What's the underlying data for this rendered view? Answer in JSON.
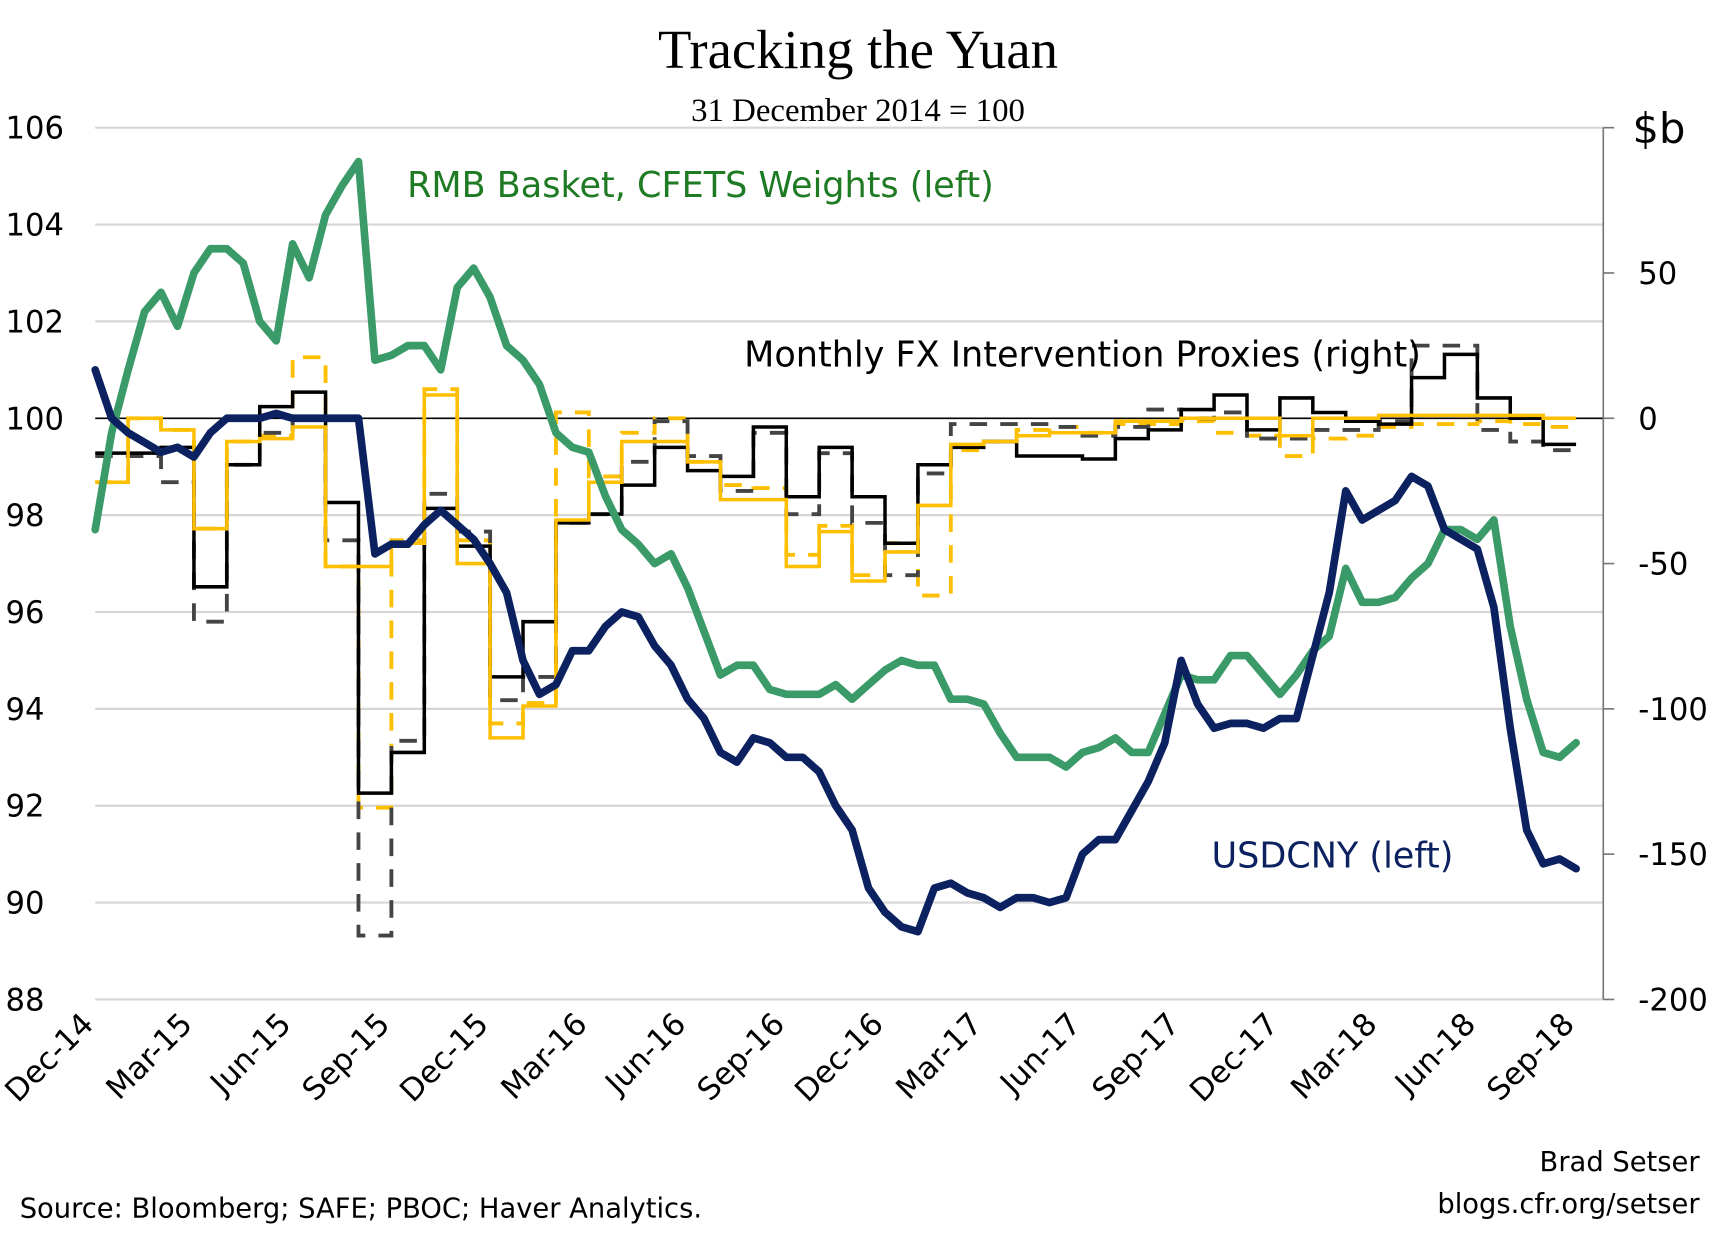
{
  "chart_data": {
    "type": "line",
    "title": "Tracking the Yuan",
    "subtitle": "31 December 2014 = 100",
    "grid": true,
    "x_tick_labels": [
      "Dec-14",
      "Mar-15",
      "Jun-15",
      "Sep-15",
      "Dec-15",
      "Mar-16",
      "Jun-16",
      "Sep-16",
      "Dec-16",
      "Mar-17",
      "Jun-17",
      "Sep-17",
      "Dec-17",
      "Mar-18",
      "Jun-18",
      "Sep-18"
    ],
    "x_range": [
      "2014-12",
      "2018-09"
    ],
    "y_left": {
      "ticks": [
        106,
        104,
        102,
        100,
        98,
        96,
        94,
        92,
        90,
        88
      ],
      "range": [
        88,
        106
      ]
    },
    "y_right": {
      "label": "$b",
      "ticks": [
        50,
        0,
        -50,
        -100,
        -150,
        -200
      ],
      "range": [
        -200,
        100
      ]
    },
    "labels": {
      "cfets": "RMB Basket, CFETS Weights (left)",
      "proxies": "Monthly FX Intervention Proxies (right)",
      "usdcny": "USDCNY (left)"
    },
    "daily": {
      "dates": [
        "2014-12-01",
        "2014-12-16",
        "2015-01-01",
        "2015-01-16",
        "2015-02-01",
        "2015-02-16",
        "2015-03-01",
        "2015-03-16",
        "2015-04-01",
        "2015-04-16",
        "2015-05-01",
        "2015-05-16",
        "2015-06-01",
        "2015-06-16",
        "2015-07-01",
        "2015-07-16",
        "2015-08-01",
        "2015-08-16",
        "2015-09-01",
        "2015-09-16",
        "2015-10-01",
        "2015-10-16",
        "2015-11-01",
        "2015-11-16",
        "2015-12-01",
        "2015-12-16",
        "2016-01-01",
        "2016-01-16",
        "2016-02-01",
        "2016-02-16",
        "2016-03-01",
        "2016-03-16",
        "2016-04-01",
        "2016-04-16",
        "2016-05-01",
        "2016-05-16",
        "2016-06-01",
        "2016-06-16",
        "2016-07-01",
        "2016-07-16",
        "2016-08-01",
        "2016-08-16",
        "2016-09-01",
        "2016-09-16",
        "2016-10-01",
        "2016-10-16",
        "2016-11-01",
        "2016-11-16",
        "2016-12-01",
        "2016-12-16",
        "2017-01-01",
        "2017-01-16",
        "2017-02-01",
        "2017-02-16",
        "2017-03-01",
        "2017-03-16",
        "2017-04-01",
        "2017-04-16",
        "2017-05-01",
        "2017-05-16",
        "2017-06-01",
        "2017-06-16",
        "2017-07-01",
        "2017-07-16",
        "2017-08-01",
        "2017-08-16",
        "2017-09-01",
        "2017-09-16",
        "2017-10-01",
        "2017-10-16",
        "2017-11-01",
        "2017-11-16",
        "2017-12-01",
        "2017-12-16",
        "2018-01-01",
        "2018-01-16",
        "2018-02-01",
        "2018-02-16",
        "2018-03-01",
        "2018-03-16",
        "2018-04-01",
        "2018-04-16",
        "2018-05-01",
        "2018-05-16",
        "2018-06-01",
        "2018-06-16",
        "2018-07-01",
        "2018-07-16",
        "2018-08-01",
        "2018-08-16",
        "2018-09-01"
      ],
      "series": [
        {
          "name": "RMB Basket, CFETS Weights (left)",
          "axis": "left",
          "color": "#3a9a68",
          "values": [
            97.7,
            99.7,
            101.0,
            102.2,
            102.6,
            101.9,
            103.0,
            103.5,
            103.5,
            103.2,
            102.0,
            101.6,
            103.6,
            102.9,
            104.2,
            104.8,
            105.3,
            101.2,
            101.3,
            101.5,
            101.5,
            101.0,
            102.7,
            103.1,
            102.5,
            101.5,
            101.2,
            100.7,
            99.7,
            99.4,
            99.3,
            98.4,
            97.7,
            97.4,
            97.0,
            97.2,
            96.5,
            95.6,
            94.7,
            94.9,
            94.9,
            94.4,
            94.3,
            94.3,
            94.3,
            94.5,
            94.2,
            94.5,
            94.8,
            95.0,
            94.9,
            94.9,
            94.2,
            94.2,
            94.1,
            93.5,
            93.0,
            93.0,
            93.0,
            92.8,
            93.1,
            93.2,
            93.4,
            93.1,
            93.1,
            93.9,
            94.7,
            94.6,
            94.6,
            95.1,
            95.1,
            94.7,
            94.3,
            94.7,
            95.2,
            95.5,
            96.9,
            96.2,
            96.2,
            96.3,
            96.7,
            97.0,
            97.7,
            97.7,
            97.5,
            97.9,
            95.7,
            94.2,
            93.1,
            93.0,
            93.3
          ]
        },
        {
          "name": "USDCNY (left)",
          "axis": "left",
          "color": "#0b2160",
          "values": [
            101.0,
            100.0,
            99.7,
            99.5,
            99.3,
            99.4,
            99.2,
            99.7,
            100.0,
            100.0,
            100.0,
            100.1,
            100.0,
            100.0,
            100.0,
            100.0,
            100.0,
            97.2,
            97.4,
            97.4,
            97.8,
            98.1,
            97.8,
            97.5,
            97.0,
            96.4,
            95.0,
            94.3,
            94.5,
            95.2,
            95.2,
            95.7,
            96.0,
            95.9,
            95.3,
            94.9,
            94.2,
            93.8,
            93.1,
            92.9,
            93.4,
            93.3,
            93.0,
            93.0,
            92.7,
            92.0,
            91.5,
            90.3,
            89.8,
            89.5,
            89.4,
            90.3,
            90.4,
            90.2,
            90.1,
            89.9,
            90.1,
            90.1,
            90.0,
            90.1,
            91.0,
            91.3,
            91.3,
            91.9,
            92.5,
            93.3,
            95.0,
            94.1,
            93.6,
            93.7,
            93.7,
            93.6,
            93.8,
            93.8,
            95.1,
            96.4,
            98.5,
            97.9,
            98.1,
            98.3,
            98.8,
            98.6,
            97.7,
            97.5,
            97.3,
            96.1,
            93.6,
            91.5,
            90.8,
            90.9,
            90.7
          ]
        }
      ]
    },
    "monthly": {
      "months": [
        "2014-12",
        "2015-01",
        "2015-02",
        "2015-03",
        "2015-04",
        "2015-05",
        "2015-06",
        "2015-07",
        "2015-08",
        "2015-09",
        "2015-10",
        "2015-11",
        "2015-12",
        "2016-01",
        "2016-02",
        "2016-03",
        "2016-04",
        "2016-05",
        "2016-06",
        "2016-07",
        "2016-08",
        "2016-09",
        "2016-10",
        "2016-11",
        "2016-12",
        "2017-01",
        "2017-02",
        "2017-03",
        "2017-04",
        "2017-05",
        "2017-06",
        "2017-07",
        "2017-08",
        "2017-09",
        "2017-10",
        "2017-11",
        "2017-12",
        "2018-01",
        "2018-02",
        "2018-03",
        "2018-04",
        "2018-05",
        "2018-06",
        "2018-07",
        "2018-08"
      ],
      "series": [
        {
          "axis": "right",
          "color": "#fdbf00",
          "dashed": true,
          "values": [
            -22,
            0,
            -4,
            -38,
            -8,
            -6,
            21,
            -51,
            -134,
            -42,
            10,
            -42,
            -105,
            -98,
            2,
            -20,
            -5,
            0,
            -15,
            -23,
            -24,
            -47,
            -37,
            -54,
            -43,
            -61,
            -11,
            -8,
            -4,
            -3,
            -5,
            -2,
            -2,
            -1,
            -5,
            -6,
            -13,
            -7,
            -6,
            -3,
            -2,
            -2,
            -1,
            -2,
            -3
          ]
        },
        {
          "axis": "right",
          "color": "#444444",
          "dashed": true,
          "values": [
            -13,
            -13,
            -22,
            -70,
            -16,
            -5,
            0,
            -42,
            -178,
            -111,
            -26,
            -39,
            -97,
            -89,
            -36,
            -33,
            -15,
            -1,
            -13,
            -25,
            -5,
            -33,
            -12,
            -36,
            -54,
            -19,
            -2,
            -2,
            -2,
            -3,
            -6,
            -3,
            3,
            0,
            2,
            -7,
            -7,
            -4,
            -4,
            -1,
            25,
            25,
            -4,
            -8,
            -11
          ]
        },
        {
          "axis": "right",
          "color": "#000000",
          "dashed": false,
          "values": [
            -12,
            -12,
            -10,
            -58,
            -16,
            4,
            9,
            -29,
            -129,
            -115,
            -31,
            -44,
            -89,
            -70,
            -36,
            -33,
            -23,
            -10,
            -18,
            -20,
            -3,
            -27,
            -10,
            -27,
            -43,
            -16,
            -10,
            -8,
            -13,
            -13,
            -14,
            -7,
            -4,
            3,
            8,
            -4,
            7,
            2,
            -1,
            -2,
            14,
            22,
            7,
            0,
            -9
          ]
        },
        {
          "axis": "right",
          "color": "#fdbf00",
          "dashed": false,
          "values": [
            -22,
            0,
            -4,
            -38,
            -8,
            -7,
            -3,
            -51,
            -51,
            -43,
            8,
            -50,
            -110,
            -99,
            -35,
            -22,
            -8,
            -8,
            -15,
            -28,
            -28,
            -51,
            -39,
            -56,
            -46,
            -30,
            -9,
            -8,
            -6,
            -5,
            -5,
            -1,
            -1,
            0,
            0,
            0,
            -6,
            0,
            0,
            1,
            1,
            1,
            1,
            1,
            0
          ]
        }
      ]
    },
    "label_colors": {
      "cfets": "#1f7a24",
      "proxies": "#000000",
      "usdcny": "#0b2160"
    },
    "source": "Source: Bloomberg; SAFE; PBOC; Haver Analytics.",
    "author": "Brad Setser",
    "website": "blogs.cfr.org/setser"
  }
}
